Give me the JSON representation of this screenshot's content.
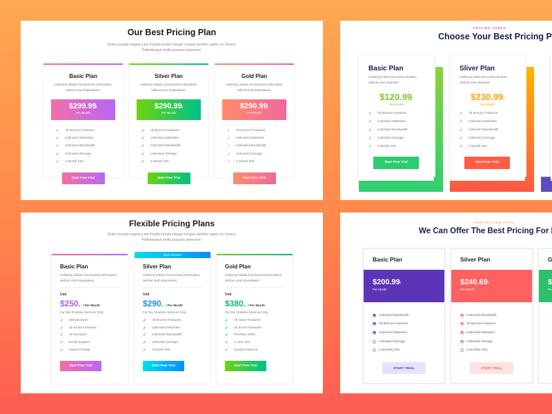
{
  "colors": {
    "background_top": "#ffa851",
    "background_bottom": "#fd5d52"
  },
  "panel1": {
    "title": "Our Best Pricing Plan",
    "subtitle_line1": "Etiam suscipit magna a leo fringilla ornare Integer congue porttitor sapien ac viverra.",
    "subtitle_line2": "Pellentesque mollis posuere awesome.",
    "cards": [
      {
        "name": "Basic Plan",
        "desc_line1": "Holisticly initiate functionized information",
        "desc_line2": "without viral imperatives.",
        "price": "$299.99",
        "slash": "/",
        "period": "Per-Month",
        "features": [
          "All Bronze Features",
          "Unlimited Websites",
          "Unlimited Bandwidth",
          "Unlimited Storage",
          "2 Month SSL"
        ],
        "button": "Start Free Trial",
        "gradient": [
          "#f26fa6",
          "#b966f5"
        ],
        "check_color": "#b966f5"
      },
      {
        "name": "Silver Plan",
        "desc_line1": "Holisticly initiate functionized information",
        "desc_line2": "without viral imperatives.",
        "price": "$290.99",
        "slash": "/",
        "period": "Per-Month",
        "features": [
          "All Bronze Features",
          "Unlimited Websites",
          "Unlimited Bandwidth",
          "Unlimited Storage",
          "2 Month SSL"
        ],
        "button": "Start Free Trial",
        "gradient": [
          "#6cd40e",
          "#00c08b"
        ],
        "check_color": "#10c37a"
      },
      {
        "name": "Gold Plan",
        "desc_line1": "Holisticly initiate functionized information",
        "desc_line2": "without viral imperatives.",
        "price": "$290.99",
        "slash": "/",
        "period": "Per-Month",
        "features": [
          "All Bronze Features",
          "Unlimited Websites",
          "Unlimited Bandwidth",
          "Unlimited Storage",
          "2 Month SSL"
        ],
        "button": "Start Free Trial",
        "gradient": [
          "#ff8c6b",
          "#f0689a"
        ],
        "check_color": "#ff8c6b"
      }
    ]
  },
  "panel2": {
    "eyebrow": "PRICING TABLE",
    "title": "Choose Your Best Pricing Plan",
    "cards": [
      {
        "name": "Basic Plan",
        "desc_line1": "Holisticly initiat funcnized infoation",
        "desc_line2": "without viral impeatvs.",
        "price": "$120.99",
        "slash": "/",
        "period": "Per-Month",
        "features": [
          "All Bronze Features",
          "Unlimited Websites",
          "Unlimited Bandwidth",
          "Unlimited Storage",
          "2 Month SSL"
        ],
        "button": "Start Free Trial",
        "accent": "#7ac92e",
        "button_color": "#2ecc71",
        "deco": [
          "#8dd13a",
          "#2fcf73"
        ]
      },
      {
        "name": "Sliver Plan",
        "desc_line1": "Holisticly initiat funcnized infoation",
        "desc_line2": "without viral impeatvs.",
        "price": "$230.99",
        "slash": "/",
        "period": "Per-Month",
        "features": [
          "All Bronze Features",
          "Unlimited Websites",
          "Unlimited Bandwidth",
          "Unlimited Storage",
          "2 Month SSL"
        ],
        "button": "Start Free Trial",
        "accent": "#ffa400",
        "button_color": "#ff5b45",
        "deco": [
          "#ffb400",
          "#ff5846"
        ]
      },
      {
        "deco": [
          "#5c4bc0",
          "#5c4bc0"
        ]
      }
    ]
  },
  "panel3": {
    "title": "Flexible Pricing Plans",
    "subtitle_line1": "Etiam suscipit magna a leo fringilla ornare Integer congue porttitor sapien ac viverra.",
    "subtitle_line2": "Pellentesque mollis posuere awesome.",
    "cards": [
      {
        "name": "Basic Plan",
        "desc_line1": "Holisticly initiate functionized information",
        "desc_line2": "without viral imperatives.",
        "currency": "Usd",
        "price": "$250.",
        "period": "/ Per Month",
        "note": "For Our Onetime Services Only",
        "features": [
          "200GB Store",
          "15 Email Adresses",
          "15 Domains",
          "Email Support",
          "Cpanel Ready"
        ],
        "button": "Start Free Trial",
        "gradient": [
          "#f26fa6",
          "#b966f5"
        ],
        "accent": "#b360f2"
      },
      {
        "badge": "Most Popular",
        "name": "Silver Plan",
        "desc_line1": "Holisticly initiate functionized information",
        "desc_line2": "without viral imperatives.",
        "currency": "Usd",
        "price": "$290.",
        "period": "/ Per Month",
        "note": "For Our Onetime Services Only",
        "features": [
          "All Bronze Features",
          "Unlimited Websites",
          "Unlimited Bandwidth",
          "Unlimited Storage",
          "2 Month SSL"
        ],
        "button": "Start Free Trial",
        "gradient": [
          "#00e0f0",
          "#0a8cff"
        ],
        "accent": "#1790ff"
      },
      {
        "name": "Gold Plan",
        "desc_line1": "Holisticly initiate functionized information",
        "desc_line2": "without viral imperatives.",
        "currency": "Usd",
        "price": "$380.",
        "period": "/ Per Month",
        "note": "For Our Onetime Services Only",
        "features": [
          "All Silver Features",
          "25 Email Adresses",
          "Premium DNS",
          "1 Year SSL",
          "Cpanel Extreme"
        ],
        "button": "Start Free Trial",
        "gradient": [
          "#6cd40e",
          "#00c08b"
        ],
        "accent": "#12b886"
      }
    ]
  },
  "panel4": {
    "eyebrow": "OUR PRICING PLAN",
    "title": "We Can Offer The Best Pricing For Ran",
    "cards": [
      {
        "name": "Basic Plan",
        "price": "$200.99",
        "slash": "/",
        "period": "Per Month",
        "features": [
          {
            "label": "Unlimited Bandwidth",
            "included": true
          },
          {
            "label": "All Bronze Features",
            "included": true
          },
          {
            "label": "Unlimited Websites",
            "included": true
          },
          {
            "label": "Unlimited Storage",
            "included": false
          },
          {
            "label": "2 Monthly SSL",
            "included": false
          }
        ],
        "button": "START TRIAL",
        "color": "#5b34b8",
        "button_bg": "#e8e1fb",
        "button_text": "#4b2aa8",
        "border": "#efeafc"
      },
      {
        "name": "Silver Plan",
        "price": "$240.69",
        "slash": "/",
        "period": "Per Month",
        "features": [
          {
            "label": "Unlimited Bandwidth",
            "included": true
          },
          {
            "label": "All Bronze Features",
            "included": true
          },
          {
            "label": "Unlimited Websites",
            "included": true
          },
          {
            "label": "Unlimited Storage",
            "included": true
          },
          {
            "label": "2 Monthly SSL",
            "included": false
          }
        ],
        "button": "START TRIAL",
        "color": "#ff6060",
        "button_bg": "#fde3e3",
        "button_text": "#ff5050",
        "border": "#ffe9e9"
      },
      {
        "name": "G",
        "price": "$",
        "period": "Pe",
        "color": "#2dbf6c",
        "border": "#e4f7ea"
      }
    ]
  }
}
